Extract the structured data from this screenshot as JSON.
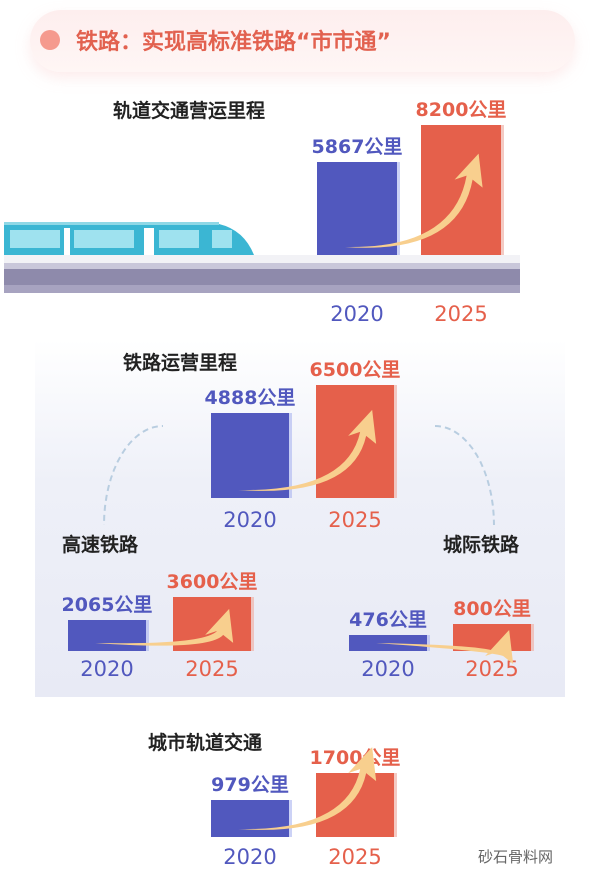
{
  "header": {
    "title": "铁路：实现高标准铁路“市市通”"
  },
  "watermark": "砂石骨料网",
  "colors": {
    "y2020": "#5158be",
    "y2025": "#e5604b",
    "arrow": "#f8cf8e",
    "title": "#e2614f"
  },
  "chart_data": [
    {
      "type": "bar",
      "title": "轨道交通营运里程",
      "categories": [
        "2020",
        "2025"
      ],
      "values": [
        5867,
        8200
      ],
      "data_labels": [
        "5867公里",
        "8200公里"
      ],
      "unit": "公里"
    },
    {
      "type": "bar",
      "title": "铁路运营里程",
      "categories": [
        "2020",
        "2025"
      ],
      "values": [
        4888,
        6500
      ],
      "data_labels": [
        "4888公里",
        "6500公里"
      ],
      "unit": "公里"
    },
    {
      "type": "bar",
      "title": "高速铁路",
      "categories": [
        "2020",
        "2025"
      ],
      "values": [
        2065,
        3600
      ],
      "data_labels": [
        "2065公里",
        "3600公里"
      ],
      "unit": "公里"
    },
    {
      "type": "bar",
      "title": "城际铁路",
      "categories": [
        "2020",
        "2025"
      ],
      "values": [
        476,
        800
      ],
      "data_labels": [
        "476公里",
        "800公里"
      ],
      "unit": "公里"
    },
    {
      "type": "bar",
      "title": "城市轨道交通",
      "categories": [
        "2020",
        "2025"
      ],
      "values": [
        979,
        1700
      ],
      "data_labels": [
        "979公里",
        "1700公里"
      ],
      "unit": "公里"
    }
  ]
}
